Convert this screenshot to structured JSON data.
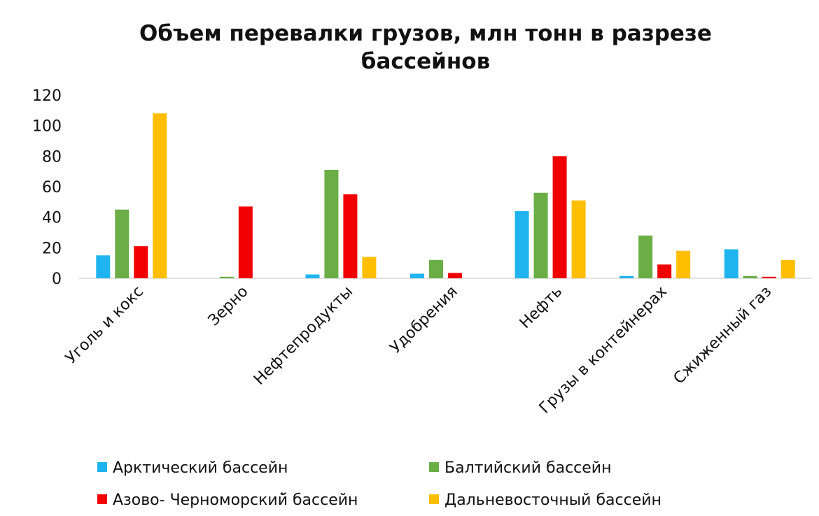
{
  "chart_data": {
    "type": "bar",
    "title_lines": [
      "Объем перевалки грузов, млн тонн в разрезе",
      "бассейнов"
    ],
    "xlabel": "",
    "ylabel": "",
    "ylim": [
      0,
      120
    ],
    "yticks": [
      "0",
      "20",
      "40",
      "60",
      "80",
      "100",
      "120"
    ],
    "grid": false,
    "legend_position": "bottom",
    "categories": [
      "Уголь и кокс",
      "Зерно",
      "Нефтепродукты",
      "Удобрения",
      "Нефть",
      "Грузы в контейнерах",
      "Сжиженный газ"
    ],
    "series": [
      {
        "name": "Арктический бассейн",
        "color": "#1FB4F0",
        "values": [
          15,
          0,
          2.5,
          3,
          44,
          1.5,
          19
        ]
      },
      {
        "name": "Балтийский бассейн",
        "color": "#6AAE45",
        "values": [
          45,
          1,
          71,
          12,
          56,
          28,
          1.5
        ]
      },
      {
        "name": "Азово- Черноморский̆ бассейн",
        "color": "#F00000",
        "values": [
          21,
          47,
          55,
          3.5,
          80,
          9,
          1
        ]
      },
      {
        "name": "Дальневосточный бассейн",
        "color": "#FFBF00",
        "values": [
          108,
          0,
          14,
          0,
          51,
          18,
          12
        ]
      }
    ]
  }
}
